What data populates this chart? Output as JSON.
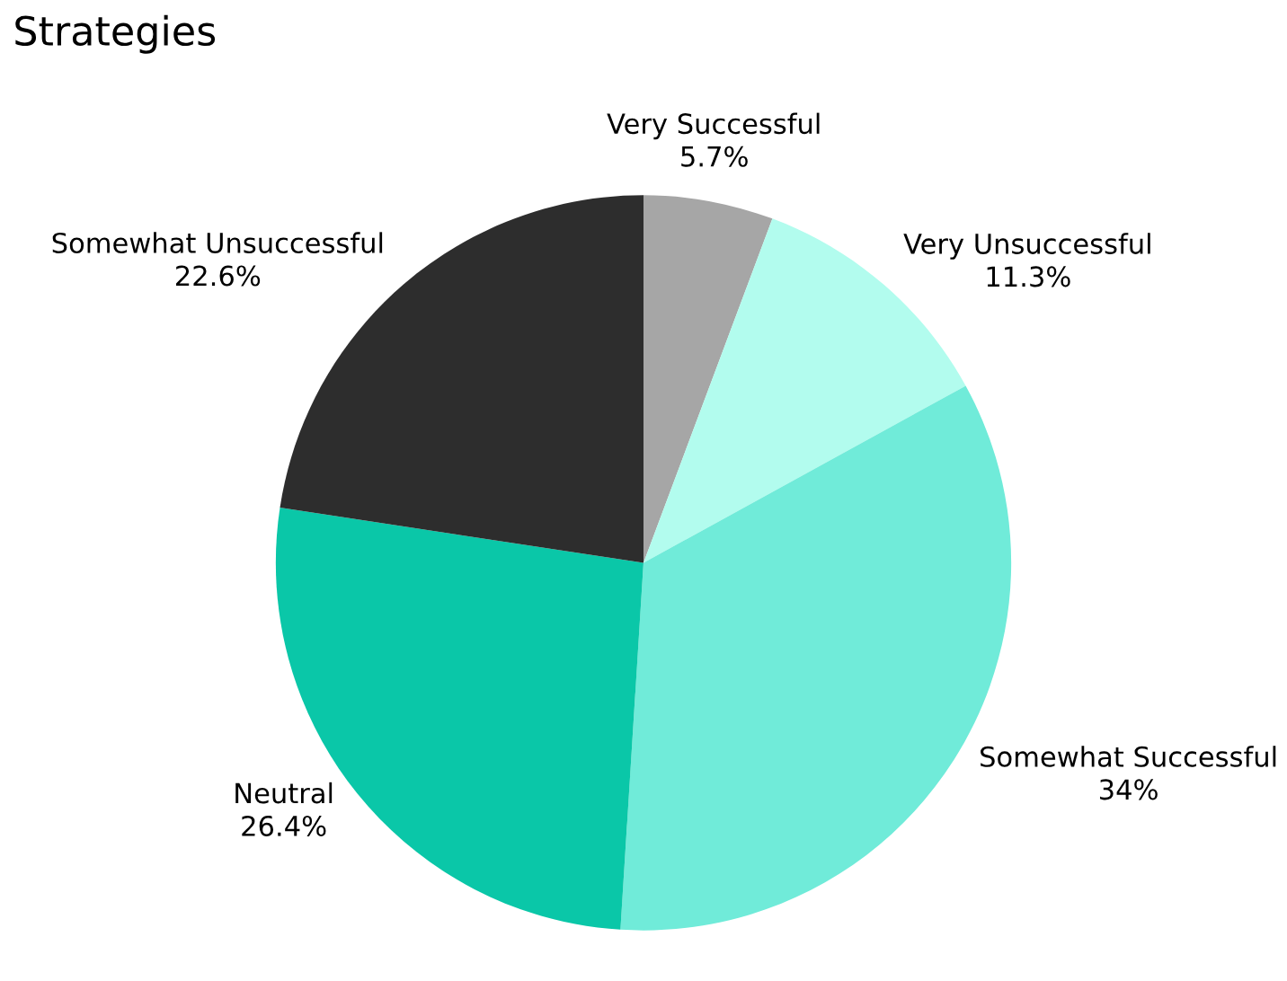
{
  "chart_data": {
    "type": "pie",
    "title": "Strategies",
    "categories": [
      "Very Successful",
      "Very Unsuccessful",
      "Somewhat Successful",
      "Neutral",
      "Somewhat Unsuccessful"
    ],
    "values": [
      5.7,
      11.3,
      34,
      26.4,
      22.6
    ],
    "value_labels": [
      "5.7%",
      "11.3%",
      "34%",
      "26.4%",
      "22.6%"
    ],
    "colors": [
      "#a6a6a6",
      "#b2fcee",
      "#70ebd9",
      "#0ac7a8",
      "#2d2d2d"
    ],
    "legend": false
  }
}
